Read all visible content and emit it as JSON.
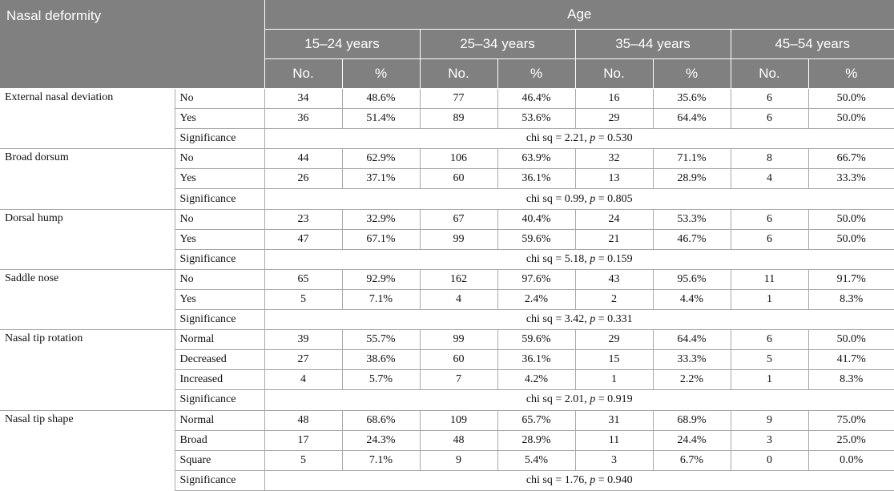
{
  "header": {
    "row_label": "Nasal deformity",
    "group_label": "Age",
    "age_groups": [
      "15–24 years",
      "25–34 years",
      "35–44 years",
      "45–54 years"
    ],
    "no_label": "No.",
    "pct_label": "%"
  },
  "groups": [
    {
      "name": "External nasal deviation",
      "rows": [
        {
          "label": "No",
          "values": [
            "34",
            "48.6%",
            "77",
            "46.4%",
            "16",
            "35.6%",
            "6",
            "50.0%"
          ]
        },
        {
          "label": "Yes",
          "values": [
            "36",
            "51.4%",
            "89",
            "53.6%",
            "29",
            "64.4%",
            "6",
            "50.0%"
          ]
        }
      ],
      "significance_label": "Significance",
      "chi": "chi sq = 2.21, ",
      "p_symbol": "p",
      "p_value": " = 0.530"
    },
    {
      "name": "Broad dorsum",
      "rows": [
        {
          "label": "No",
          "values": [
            "44",
            "62.9%",
            "106",
            "63.9%",
            "32",
            "71.1%",
            "8",
            "66.7%"
          ]
        },
        {
          "label": "Yes",
          "values": [
            "26",
            "37.1%",
            "60",
            "36.1%",
            "13",
            "28.9%",
            "4",
            "33.3%"
          ]
        }
      ],
      "significance_label": "Significance",
      "chi": "chi sq = 0.99, ",
      "p_symbol": "p",
      "p_value": " = 0.805"
    },
    {
      "name": "Dorsal hump",
      "rows": [
        {
          "label": "No",
          "values": [
            "23",
            "32.9%",
            "67",
            "40.4%",
            "24",
            "53.3%",
            "6",
            "50.0%"
          ]
        },
        {
          "label": "Yes",
          "values": [
            "47",
            "67.1%",
            "99",
            "59.6%",
            "21",
            "46.7%",
            "6",
            "50.0%"
          ]
        }
      ],
      "significance_label": "Significance",
      "chi": "chi sq = 5.18, ",
      "p_symbol": "p",
      "p_value": " = 0.159"
    },
    {
      "name": "Saddle nose",
      "rows": [
        {
          "label": "No",
          "values": [
            "65",
            "92.9%",
            "162",
            "97.6%",
            "43",
            "95.6%",
            "11",
            "91.7%"
          ]
        },
        {
          "label": "Yes",
          "values": [
            "5",
            "7.1%",
            "4",
            "2.4%",
            "2",
            "4.4%",
            "1",
            "8.3%"
          ]
        }
      ],
      "significance_label": "Significance",
      "chi": "chi sq = 3.42, ",
      "p_symbol": "p",
      "p_value": " = 0.331"
    },
    {
      "name": "Nasal tip rotation",
      "rows": [
        {
          "label": "Normal",
          "values": [
            "39",
            "55.7%",
            "99",
            "59.6%",
            "29",
            "64.4%",
            "6",
            "50.0%"
          ]
        },
        {
          "label": "Decreased",
          "values": [
            "27",
            "38.6%",
            "60",
            "36.1%",
            "15",
            "33.3%",
            "5",
            "41.7%"
          ]
        },
        {
          "label": "Increased",
          "values": [
            "4",
            "5.7%",
            "7",
            "4.2%",
            "1",
            "2.2%",
            "1",
            "8.3%"
          ]
        }
      ],
      "significance_label": "Significance",
      "chi": "chi sq = 2.01, ",
      "p_symbol": "p",
      "p_value": " = 0.919"
    },
    {
      "name": "Nasal tip shape",
      "rows": [
        {
          "label": "Normal",
          "values": [
            "48",
            "68.6%",
            "109",
            "65.7%",
            "31",
            "68.9%",
            "9",
            "75.0%"
          ]
        },
        {
          "label": "Broad",
          "values": [
            "17",
            "24.3%",
            "48",
            "28.9%",
            "11",
            "24.4%",
            "3",
            "25.0%"
          ]
        },
        {
          "label": "Square",
          "values": [
            "5",
            "7.1%",
            "9",
            "5.4%",
            "3",
            "6.7%",
            "0",
            "0.0%"
          ]
        }
      ],
      "significance_label": "Significance",
      "chi": "chi sq = 1.76, ",
      "p_symbol": "p",
      "p_value": " = 0.940"
    }
  ]
}
